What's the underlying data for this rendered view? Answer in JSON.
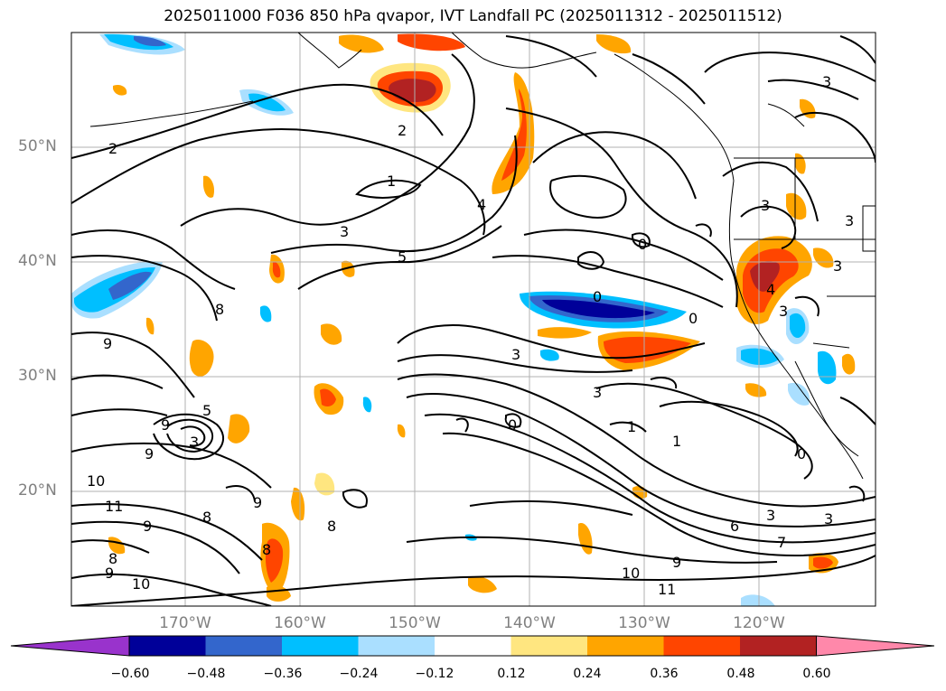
{
  "title": "2025011000 F036 850 hPa qvapor, IVT Landfall PC (2025011312 - 2025011512)",
  "lat_labels": [
    "50°N",
    "40°N",
    "30°N",
    "20°N"
  ],
  "lon_labels": [
    "170°W",
    "160°W",
    "150°W",
    "140°W",
    "130°W",
    "120°W"
  ],
  "contour_labels": [
    "2",
    "2",
    "1",
    "3",
    "5",
    "4",
    "3",
    "3",
    "3",
    "9",
    "8",
    "9",
    "5",
    "9",
    "3",
    "10",
    "11",
    "9",
    "8",
    "9",
    "9",
    "10",
    "8",
    "8",
    "8",
    "10",
    "9",
    "11",
    "3",
    "6",
    "7",
    "3",
    "1",
    "1",
    "0",
    "0",
    "0",
    "0",
    "3",
    "3",
    "4",
    "3",
    "0",
    "3"
  ],
  "colorbar": {
    "ticks": [
      "−0.60",
      "−0.48",
      "−0.36",
      "−0.24",
      "−0.12",
      "0.12",
      "0.24",
      "0.36",
      "0.48",
      "0.60"
    ],
    "colors": [
      "#9933cc",
      "#000099",
      "#3366cc",
      "#00bfff",
      "#aadfff",
      "#ffffff",
      "#ffe680",
      "#ffa500",
      "#ff4500",
      "#b22222",
      "#ff88aa"
    ]
  },
  "colors": {
    "neg_strong": "#000099",
    "neg_mid": "#3366cc",
    "neg_light": "#00bfff",
    "neg_pale": "#aadfff",
    "pos_pale": "#ffe680",
    "pos_light": "#ffa500",
    "pos_mid": "#ff4500",
    "pos_strong": "#b22222"
  }
}
